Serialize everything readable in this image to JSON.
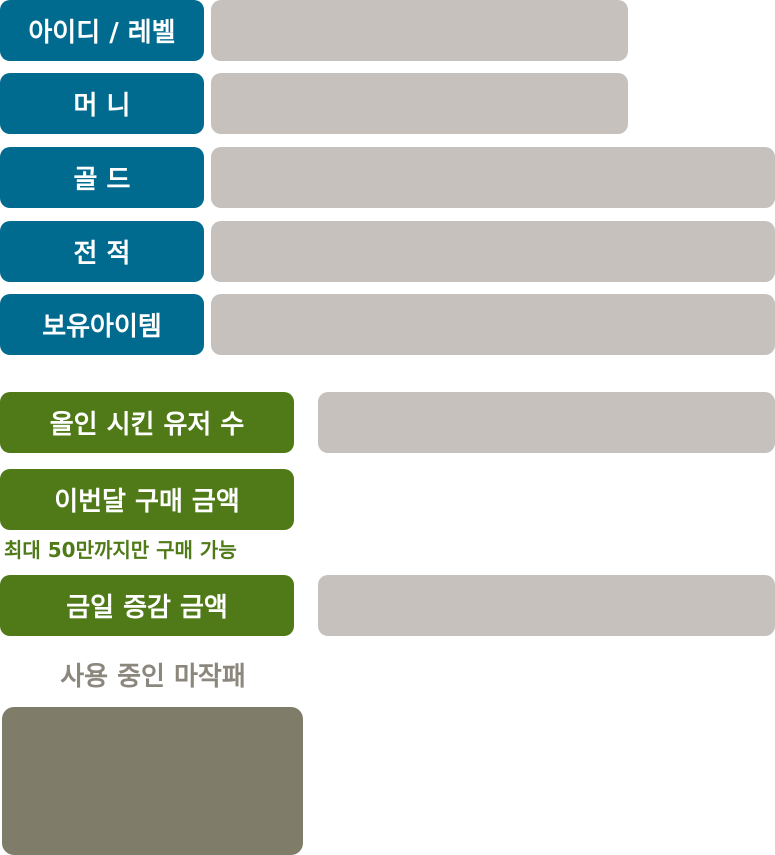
{
  "profile_rows": [
    {
      "label": "아이디 / 레벨",
      "value": ""
    },
    {
      "label": "머 니",
      "value": ""
    },
    {
      "label": "골 드",
      "value": ""
    },
    {
      "label": "전 적",
      "value": ""
    },
    {
      "label": "보유아이템",
      "value": ""
    }
  ],
  "stats_rows": [
    {
      "label": "올인 시킨 유저 수",
      "value": ""
    },
    {
      "label": "이번달 구매 금액",
      "note": "최대 50만까지만 구매 가능"
    },
    {
      "label": "금일 증감 금액",
      "value": ""
    }
  ],
  "mahjong_section": {
    "title": "사용 중인 마작패"
  },
  "colors": {
    "profile_label_bg": "#006b8f",
    "stats_label_bg": "#4f7a17",
    "field_bg": "#c6c1bc",
    "section_title": "#8b877d",
    "mahjong_box_bg": "#7f7c6a"
  }
}
